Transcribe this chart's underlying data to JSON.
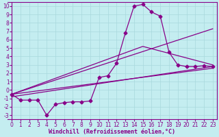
{
  "xlabel": "Windchill (Refroidissement éolien,°C)",
  "background_color": "#c4edf0",
  "line_color": "#880088",
  "grid_color": "#a8d8dc",
  "xlim": [
    -0.5,
    23.5
  ],
  "ylim": [
    -3.5,
    10.5
  ],
  "xticks": [
    0,
    1,
    2,
    3,
    4,
    5,
    6,
    7,
    8,
    9,
    10,
    11,
    12,
    13,
    14,
    15,
    16,
    17,
    18,
    19,
    20,
    21,
    22,
    23
  ],
  "yticks": [
    -3,
    -2,
    -1,
    0,
    1,
    2,
    3,
    4,
    5,
    6,
    7,
    8,
    9,
    10
  ],
  "line1_x": [
    0,
    1,
    2,
    3,
    4,
    5,
    6,
    7,
    8,
    9,
    10,
    11,
    12,
    13,
    14,
    15,
    16,
    17,
    18,
    19,
    20,
    21,
    22,
    23
  ],
  "line1_y": [
    -0.5,
    -1.2,
    -1.2,
    -1.2,
    -3.0,
    -1.7,
    -1.5,
    -1.4,
    -1.4,
    -1.3,
    1.5,
    1.7,
    3.2,
    6.8,
    10.0,
    10.2,
    9.3,
    8.8,
    4.5,
    3.0,
    2.8,
    2.8,
    2.9,
    2.8
  ],
  "line2_x": [
    0,
    23
  ],
  "line2_y": [
    -0.8,
    2.8
  ],
  "line3_x": [
    0,
    23
  ],
  "line3_y": [
    -0.5,
    7.3
  ],
  "line4_x": [
    0,
    15,
    23
  ],
  "line4_y": [
    -0.5,
    5.2,
    3.0
  ],
  "line5_x": [
    0,
    23
  ],
  "line5_y": [
    -0.5,
    2.6
  ],
  "xlabel_fontsize": 6,
  "tick_fontsize": 5.5
}
